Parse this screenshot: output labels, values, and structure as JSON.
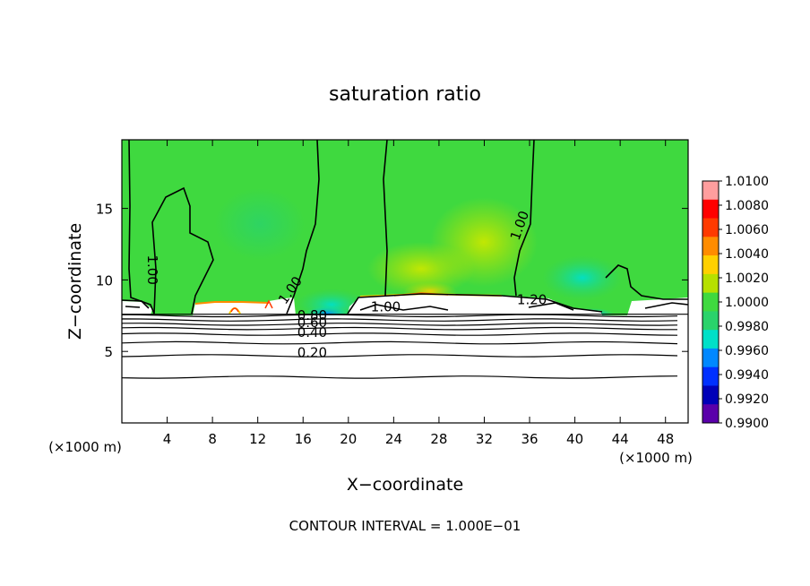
{
  "chart_data": {
    "type": "heatmap",
    "title": "saturation ratio",
    "xlabel": "X−coordinate",
    "ylabel": "Z−coordinate",
    "x_unit_left": "(×1000 m)",
    "x_unit_right": "(×1000 m)",
    "footer": "CONTOUR INTERVAL = 1.000E−01",
    "xlim": [
      0,
      50
    ],
    "ylim": [
      0,
      19.8
    ],
    "x_ticks": [
      4,
      8,
      12,
      16,
      20,
      24,
      28,
      32,
      36,
      40,
      44,
      48
    ],
    "x_tick_labels": [
      "4",
      "8",
      "12",
      "16",
      "20",
      "24",
      "28",
      "32",
      "36",
      "40",
      "44",
      "48"
    ],
    "y_ticks": [
      5,
      10,
      15
    ],
    "y_tick_labels": [
      "5",
      "10",
      "15"
    ],
    "colorbar": {
      "range": [
        0.99,
        1.01
      ],
      "labels": [
        "1.0100",
        "1.0080",
        "1.0060",
        "1.0040",
        "1.0020",
        "1.0000",
        "0.9980",
        "0.9960",
        "0.9940",
        "0.9920",
        "0.9900"
      ],
      "colors": [
        "#ff9e9e",
        "#ff0000",
        "#ff3a00",
        "#ff8c00",
        "#ffd000",
        "#b6e000",
        "#3fd93f",
        "#2ad36b",
        "#00e0c8",
        "#0088ff",
        "#0030ff",
        "#0000b8",
        "#5a00aa"
      ]
    },
    "background_color": "#3fd93f",
    "contour_labels": [
      {
        "text": "1.00",
        "x": 2.3,
        "z": 10.7,
        "rotate": 90
      },
      {
        "text": "1.00",
        "x": 15.2,
        "z": 9.1,
        "rotate": -55
      },
      {
        "text": "1.00",
        "x": 23.3,
        "z": 7.8,
        "rotate": 0
      },
      {
        "text": "1.20",
        "x": 36.2,
        "z": 8.3,
        "rotate": 0
      },
      {
        "text": "1.00",
        "x": 35.5,
        "z": 13.7,
        "rotate": -70
      },
      {
        "text": "0.80",
        "x": 16.8,
        "z": 7.2,
        "rotate": 0
      },
      {
        "text": "0.60",
        "x": 16.8,
        "z": 6.7,
        "rotate": 0
      },
      {
        "text": "0.40",
        "x": 16.8,
        "z": 6.0,
        "rotate": 0
      },
      {
        "text": "0.20",
        "x": 16.8,
        "z": 4.6,
        "rotate": 0
      }
    ],
    "horizontal_contours_z": [
      3.2,
      4.7,
      5.6,
      6.2,
      6.6,
      6.9,
      7.2,
      7.5
    ],
    "cloud_base_z": 7.6
  }
}
